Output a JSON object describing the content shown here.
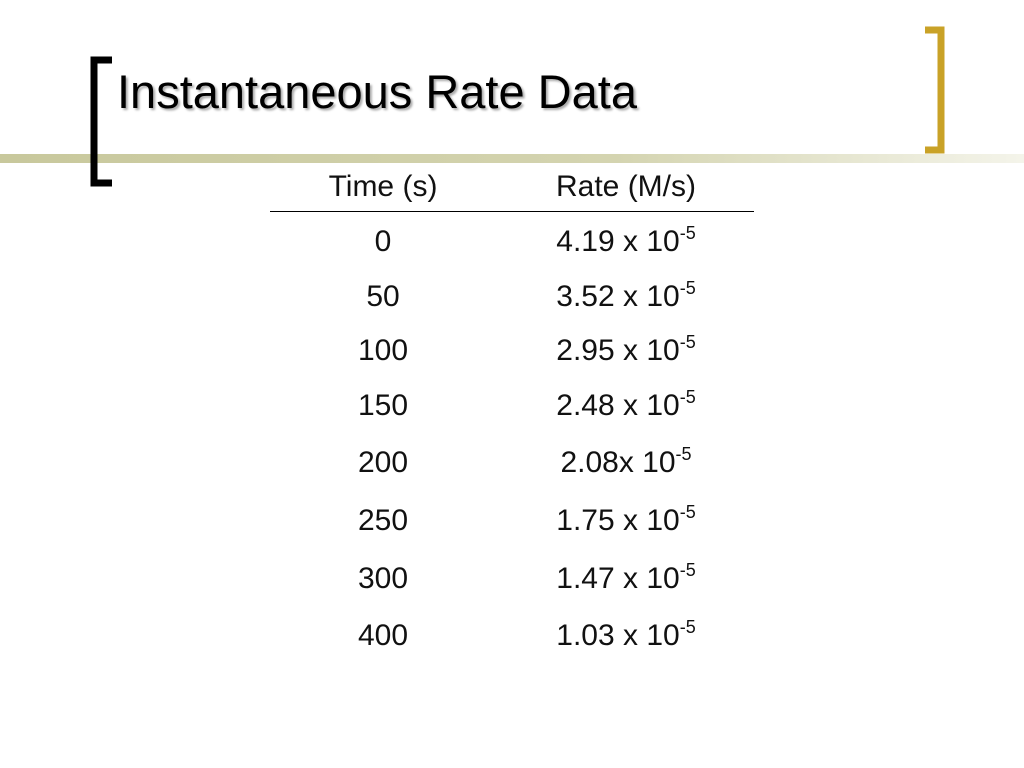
{
  "title": "Instantaneous Rate Data",
  "table": {
    "headers": [
      "Time (s)",
      "Rate (M/s)"
    ],
    "rows": [
      {
        "time": 0,
        "rate": "4.19 x 10",
        "exponent": "-5"
      },
      {
        "time": 50,
        "rate": "3.52 x 10",
        "exponent": "-5"
      },
      {
        "time": 100,
        "rate": "2.95 x 10",
        "exponent": "-5"
      },
      {
        "time": 150,
        "rate": "2.48 x 10",
        "exponent": "-5"
      },
      {
        "time": 200,
        "rate": "2.08x 10",
        "exponent": "-5"
      },
      {
        "time": 250,
        "rate": "1.75 x 10",
        "exponent": "-5"
      },
      {
        "time": 300,
        "rate": "1.47 x 10",
        "exponent": "-5"
      },
      {
        "time": 400,
        "rate": "1.03 x 10",
        "exponent": "-5"
      }
    ]
  }
}
